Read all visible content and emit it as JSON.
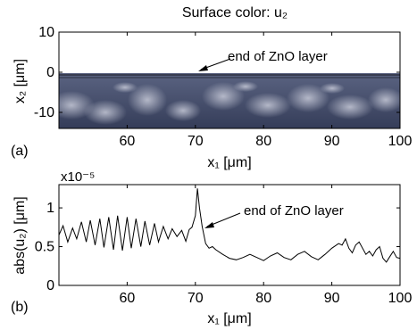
{
  "chart_data": [
    {
      "panel_label": "(a)",
      "type": "heatmap",
      "title": "Surface color: u₂",
      "xlabel": "x₁ [μm]",
      "ylabel": "x₂ [μm]",
      "xlim": [
        50,
        100
      ],
      "ylim": [
        -14,
        10
      ],
      "xticks": [
        "60",
        "70",
        "80",
        "90",
        "100"
      ],
      "yticks": [
        "10",
        "0",
        "-10"
      ],
      "annotation": "end of ZnO layer",
      "annotation_target": {
        "x": 70,
        "y": 0
      },
      "layer_x_range": [
        50,
        70
      ],
      "colors": {
        "field_dark": "#3d4664",
        "field_light": "#c7cad8",
        "layer": "#8fd0c8",
        "frame": "#000000"
      }
    },
    {
      "panel_label": "(b)",
      "type": "line",
      "xlabel": "x₁ [μm]",
      "ylabel": "abs(u₂) [μm]",
      "y_scale_label": "x10⁻⁵",
      "xlim": [
        50,
        100
      ],
      "ylim": [
        0,
        1.3
      ],
      "xticks": [
        "60",
        "70",
        "80",
        "90",
        "100"
      ],
      "yticks": [
        "0",
        "0.5",
        "1"
      ],
      "annotation": "end of ZnO layer",
      "annotation_target": {
        "x": 70.6,
        "y": 1.07
      },
      "series": [
        {
          "color": "#000000",
          "x": [
            50,
            50.6,
            51.3,
            52,
            52.6,
            53.3,
            54,
            54.6,
            55.3,
            56,
            56.6,
            57.3,
            58,
            58.6,
            59.3,
            60,
            60.6,
            61.3,
            62,
            62.6,
            63.3,
            64,
            64.6,
            65.3,
            66,
            66.6,
            67.3,
            68,
            68.6,
            69.1,
            69.5,
            70,
            70.3,
            70.6,
            71,
            71.5,
            72,
            72.5,
            73,
            74,
            75,
            76,
            77,
            78,
            79,
            80,
            81,
            82,
            83,
            84,
            85,
            86,
            87,
            88,
            89,
            90,
            91,
            91.5,
            92,
            92.5,
            93,
            93.5,
            94,
            95,
            95.5,
            96,
            96.5,
            97,
            97.5,
            98,
            98.5,
            99,
            99.5,
            100
          ],
          "y": [
            0.65,
            0.77,
            0.56,
            0.74,
            0.6,
            0.82,
            0.56,
            0.84,
            0.52,
            0.86,
            0.49,
            0.88,
            0.46,
            0.9,
            0.45,
            0.88,
            0.48,
            0.86,
            0.5,
            0.83,
            0.52,
            0.8,
            0.56,
            0.76,
            0.6,
            0.73,
            0.63,
            0.71,
            0.57,
            0.72,
            0.75,
            0.9,
            1.25,
            1.0,
            0.76,
            0.54,
            0.48,
            0.5,
            0.46,
            0.4,
            0.35,
            0.33,
            0.36,
            0.4,
            0.36,
            0.32,
            0.38,
            0.42,
            0.36,
            0.33,
            0.4,
            0.44,
            0.37,
            0.33,
            0.4,
            0.48,
            0.54,
            0.52,
            0.6,
            0.48,
            0.42,
            0.52,
            0.56,
            0.4,
            0.44,
            0.38,
            0.46,
            0.5,
            0.35,
            0.3,
            0.37,
            0.44,
            0.36,
            0.35
          ]
        }
      ]
    }
  ]
}
